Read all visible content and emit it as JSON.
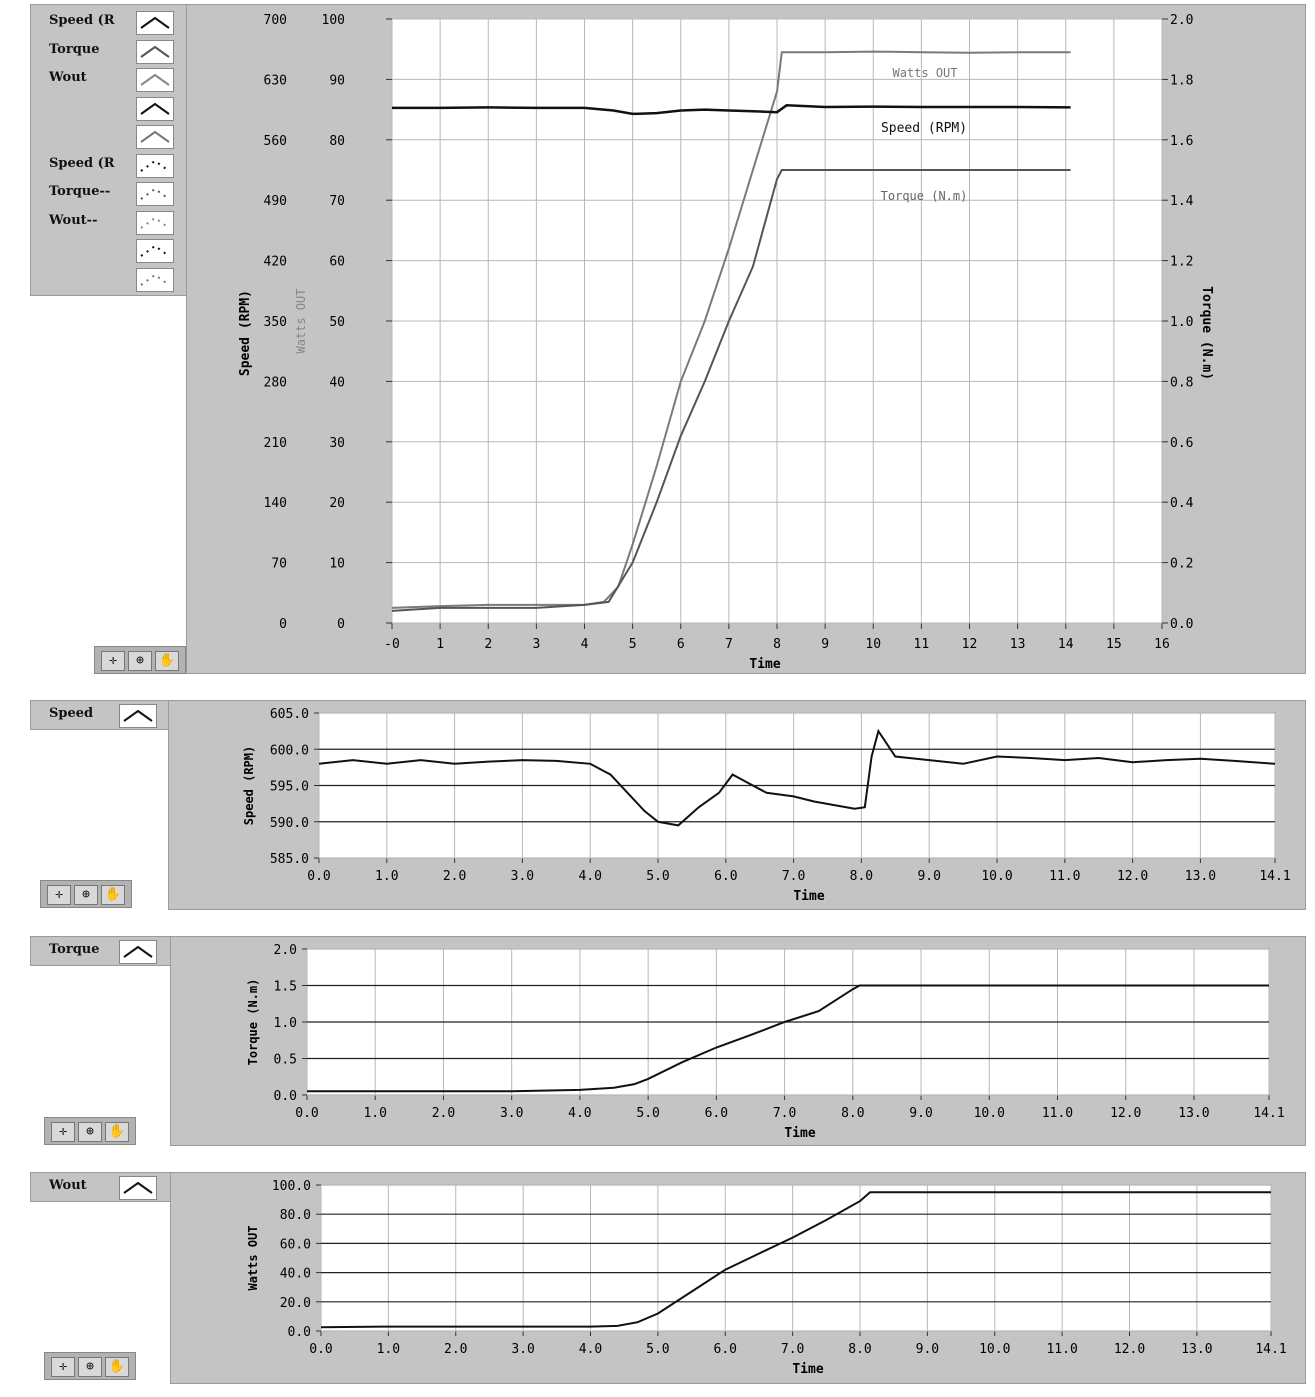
{
  "legend_top": {
    "items": [
      {
        "label": "Speed (R",
        "style": "solid",
        "color": "#111111"
      },
      {
        "label": "Torque",
        "style": "solid",
        "color": "#555555"
      },
      {
        "label": "Wout",
        "style": "solid",
        "color": "#888888"
      },
      {
        "label": "",
        "style": "solid",
        "color": "#111111"
      },
      {
        "label": "",
        "style": "solid",
        "color": "#777777"
      },
      {
        "label": "Speed (R",
        "style": "dotted",
        "color": "#111111"
      },
      {
        "label": "Torque--",
        "style": "dotted",
        "color": "#555555"
      },
      {
        "label": "Wout--",
        "style": "dotted",
        "color": "#888888"
      },
      {
        "label": "",
        "style": "dotted",
        "color": "#111111"
      },
      {
        "label": "",
        "style": "dotted",
        "color": "#777777"
      }
    ]
  },
  "legend_speed": {
    "label": "Speed"
  },
  "legend_torque": {
    "label": "Torque"
  },
  "legend_wout": {
    "label": "Wout"
  },
  "tool_icons": [
    "crosshair-icon",
    "zoom-icon",
    "hand-icon"
  ],
  "colors": {
    "speed": "#111111",
    "torque": "#555555",
    "watts": "#7a7a7a",
    "panel": "#c4c4c4",
    "grid": "#a8a8a8"
  },
  "chart_data": [
    {
      "id": "combined",
      "type": "line",
      "xlabel": "Time",
      "x_ticks": [
        "-0",
        "1",
        "2",
        "3",
        "4",
        "5",
        "6",
        "7",
        "8",
        "9",
        "10",
        "11",
        "12",
        "13",
        "14",
        "15",
        "16"
      ],
      "xlim": [
        0,
        16
      ],
      "axes": {
        "speed": {
          "label": "Speed (RPM)",
          "ticks": [
            "700",
            "630",
            "560",
            "490",
            "420",
            "350",
            "280",
            "210",
            "140",
            "70",
            "0"
          ],
          "ylim": [
            0,
            700
          ]
        },
        "watts": {
          "label": "Watts OUT",
          "ticks": [
            "100",
            "90",
            "80",
            "70",
            "60",
            "50",
            "40",
            "30",
            "20",
            "10",
            "0"
          ],
          "ylim": [
            0,
            100
          ]
        },
        "torque": {
          "label": "Torque (N.m)",
          "ticks": [
            "2.0",
            "1.8",
            "1.6",
            "1.4",
            "1.2",
            "1.0",
            "0.8",
            "0.6",
            "0.4",
            "0.2",
            "0.0"
          ],
          "ylim": [
            0,
            2.0
          ]
        }
      },
      "series": [
        {
          "name": "Watts OUT",
          "axis": "watts",
          "x": [
            0,
            1,
            2,
            3,
            4,
            4.4,
            4.7,
            5,
            5.5,
            6,
            6.5,
            7,
            7.5,
            8,
            8.1,
            9,
            10,
            11,
            12,
            13,
            14.1
          ],
          "values": [
            2.5,
            2.8,
            3,
            3,
            3,
            3.5,
            6,
            13,
            26,
            40,
            50,
            62,
            75,
            88,
            94.5,
            94.5,
            94.6,
            94.5,
            94.4,
            94.5,
            94.5
          ]
        },
        {
          "name": "Speed (RPM)",
          "axis": "speed",
          "x": [
            0,
            1,
            2,
            3,
            4,
            4.6,
            5,
            5.5,
            6,
            6.5,
            7,
            7.5,
            8,
            8.2,
            9,
            10,
            11,
            12,
            13,
            14.1
          ],
          "values": [
            597,
            597,
            597.5,
            597,
            597,
            594,
            590,
            591,
            594,
            595,
            594,
            593,
            592,
            600,
            598,
            598.5,
            598,
            598,
            598,
            597.5
          ]
        },
        {
          "name": "Torque (N.m)",
          "axis": "torque",
          "x": [
            0,
            1,
            2,
            3,
            4,
            4.5,
            5,
            5.5,
            6,
            6.5,
            7,
            7.5,
            8,
            8.1,
            9,
            10,
            11,
            12,
            13,
            14.1
          ],
          "values": [
            0.04,
            0.05,
            0.05,
            0.05,
            0.06,
            0.07,
            0.2,
            0.4,
            0.62,
            0.8,
            1.0,
            1.18,
            1.47,
            1.5,
            1.5,
            1.5,
            1.5,
            1.5,
            1.5,
            1.5
          ]
        }
      ],
      "annotations": [
        "Watts OUT",
        "Speed (RPM)",
        "Torque (N.m)"
      ]
    },
    {
      "id": "speed",
      "type": "line",
      "xlabel": "Time",
      "ylabel": "Speed (RPM)",
      "x_ticks": [
        "0.0",
        "1.0",
        "2.0",
        "3.0",
        "4.0",
        "5.0",
        "6.0",
        "7.0",
        "8.0",
        "9.0",
        "10.0",
        "11.0",
        "12.0",
        "13.0",
        "14.1"
      ],
      "y_ticks": [
        "605.0",
        "600.0",
        "595.0",
        "590.0",
        "585.0"
      ],
      "xlim": [
        0,
        14.1
      ],
      "ylim": [
        585,
        605
      ],
      "series": [
        {
          "name": "Speed",
          "x": [
            0,
            0.5,
            1,
            1.5,
            2,
            2.5,
            3,
            3.5,
            4,
            4.3,
            4.6,
            4.8,
            5,
            5.3,
            5.6,
            5.9,
            6.1,
            6.3,
            6.6,
            7,
            7.3,
            7.6,
            7.9,
            8.05,
            8.15,
            8.25,
            8.5,
            9,
            9.5,
            10,
            10.5,
            11,
            11.5,
            12,
            12.5,
            13,
            13.5,
            14.1
          ],
          "values": [
            598,
            598.5,
            598,
            598.5,
            598,
            598.3,
            598.5,
            598.4,
            598,
            596.5,
            593.5,
            591.5,
            590,
            589.5,
            592,
            594,
            596.5,
            595.5,
            594,
            593.5,
            592.8,
            592.3,
            591.8,
            592,
            599,
            602.5,
            599,
            598.5,
            598,
            599,
            598.8,
            598.5,
            598.8,
            598.2,
            598.5,
            598.7,
            598.4,
            598
          ]
        }
      ]
    },
    {
      "id": "torque",
      "type": "line",
      "xlabel": "Time",
      "ylabel": "Torque (N.m)",
      "x_ticks": [
        "0.0",
        "1.0",
        "2.0",
        "3.0",
        "4.0",
        "5.0",
        "6.0",
        "7.0",
        "8.0",
        "9.0",
        "10.0",
        "11.0",
        "12.0",
        "13.0",
        "14.1"
      ],
      "y_ticks": [
        "2.0",
        "1.5",
        "1.0",
        "0.5",
        "0.0"
      ],
      "xlim": [
        0,
        14.1
      ],
      "ylim": [
        0,
        2.0
      ],
      "series": [
        {
          "name": "Torque",
          "x": [
            0,
            1,
            2,
            3,
            4,
            4.5,
            4.8,
            5,
            5.5,
            6,
            6.5,
            7,
            7.5,
            8,
            8.1,
            9,
            10,
            11,
            12,
            13,
            14.1
          ],
          "values": [
            0.05,
            0.05,
            0.05,
            0.05,
            0.07,
            0.1,
            0.15,
            0.22,
            0.45,
            0.65,
            0.82,
            1.0,
            1.15,
            1.45,
            1.5,
            1.5,
            1.5,
            1.5,
            1.5,
            1.5,
            1.5
          ]
        }
      ]
    },
    {
      "id": "watts",
      "type": "line",
      "xlabel": "Time",
      "ylabel": "Watts OUT",
      "x_ticks": [
        "0.0",
        "1.0",
        "2.0",
        "3.0",
        "4.0",
        "5.0",
        "6.0",
        "7.0",
        "8.0",
        "9.0",
        "10.0",
        "11.0",
        "12.0",
        "13.0",
        "14.1"
      ],
      "y_ticks": [
        "100.0",
        "80.0",
        "60.0",
        "40.0",
        "20.0",
        "0.0"
      ],
      "xlim": [
        0,
        14.1
      ],
      "ylim": [
        0,
        100
      ],
      "series": [
        {
          "name": "Wout",
          "x": [
            0,
            1,
            2,
            3,
            4,
            4.4,
            4.7,
            5,
            5.5,
            6,
            6.5,
            7,
            7.5,
            8,
            8.15,
            9,
            10,
            11,
            12,
            13,
            14.1
          ],
          "values": [
            2.5,
            3,
            3,
            3,
            3,
            3.5,
            6,
            12,
            27,
            42,
            53,
            64,
            76,
            89,
            95,
            95,
            95,
            95,
            95,
            95,
            95
          ]
        }
      ]
    }
  ]
}
